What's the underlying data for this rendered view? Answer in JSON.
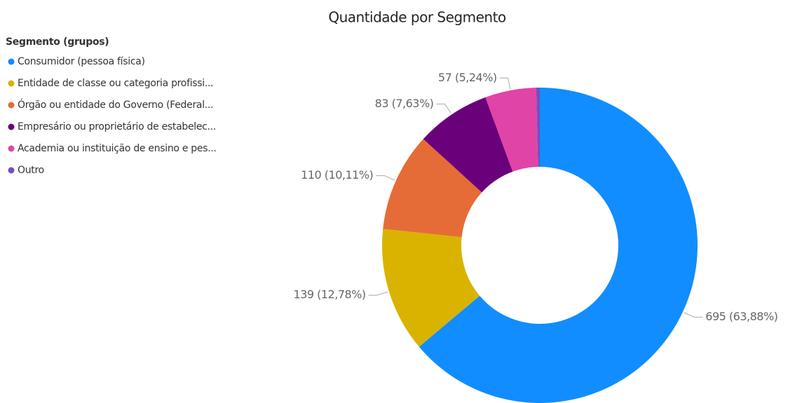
{
  "chart_data": {
    "type": "donut",
    "title": "Quantidade por Segmento",
    "legend_title": "Segmento (grupos)",
    "categories": [
      "Consumidor (pessoa física)",
      "Entidade de classe ou categoria profissi...",
      "Órgão ou entidade do Governo (Federal...",
      "Empresário ou proprietário de estabelec...",
      "Academia ou instituição de ensino e pes...",
      "Outro"
    ],
    "values": [
      695,
      139,
      110,
      83,
      57,
      4
    ],
    "value_labels": [
      "695 (63,88%)",
      "139 (12,78%)",
      "110 (10,11%)",
      "83 (7,63%)",
      "57 (5,24%)",
      null
    ],
    "colors": [
      "#118dff",
      "#d9b300",
      "#e66c37",
      "#6b007b",
      "#e044a7",
      "#744ec2"
    ],
    "legend": "top-left"
  }
}
